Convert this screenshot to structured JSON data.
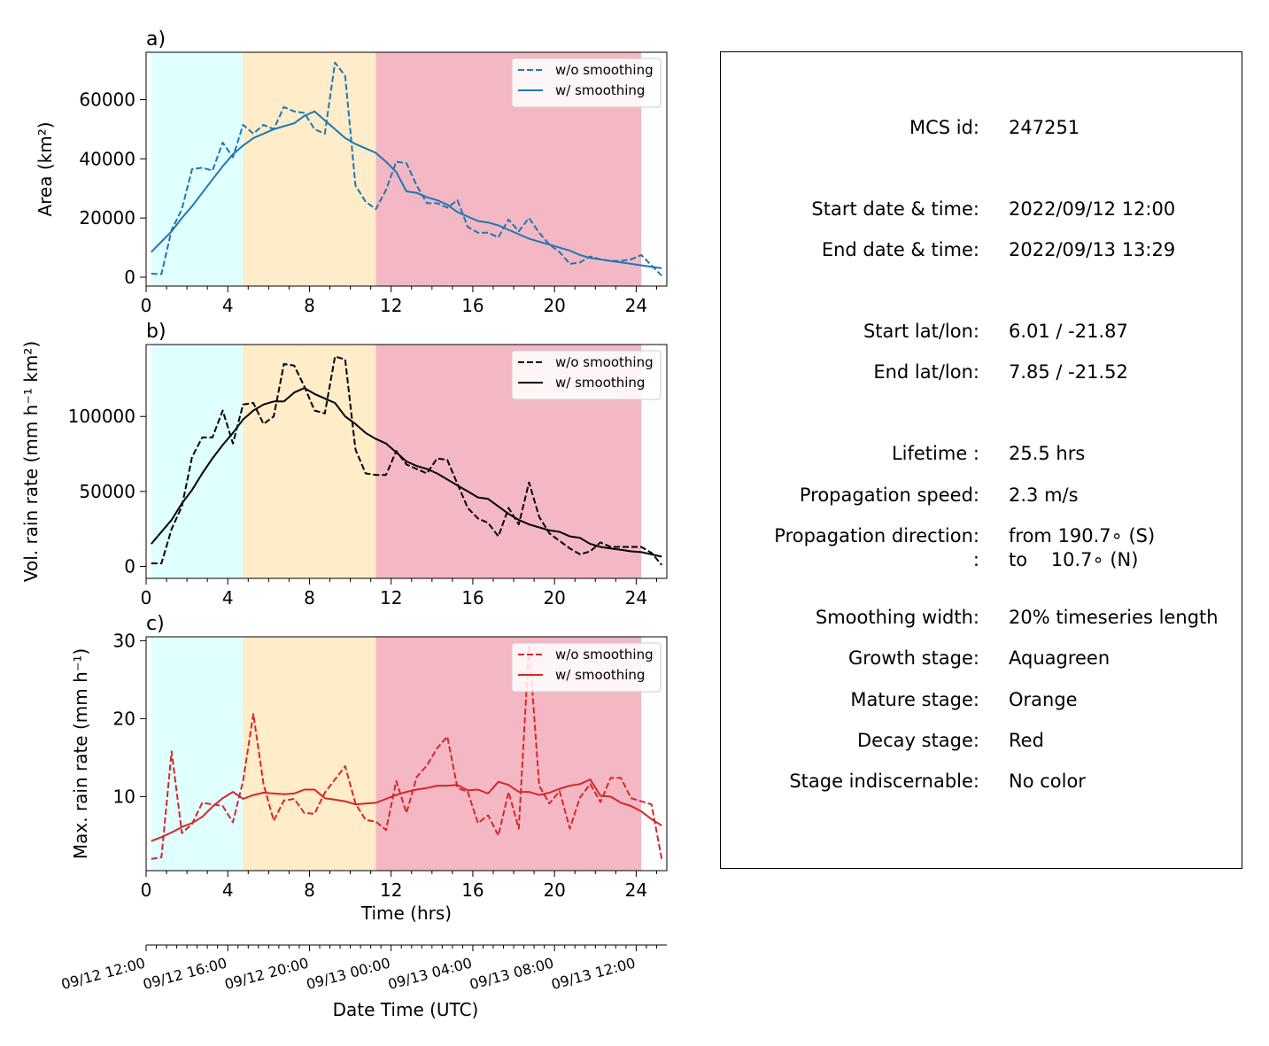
{
  "chart_data": [
    {
      "type": "line",
      "panel_label": "a)",
      "ylabel": "Area  (km²)",
      "xlim": [
        0,
        25.5
      ],
      "ylim": [
        -3000,
        76000
      ],
      "yticks": [
        0,
        20000,
        40000,
        60000
      ],
      "xticks": [
        0,
        4,
        8,
        12,
        16,
        20,
        24
      ],
      "color": "#1f77b4",
      "stages": [
        {
          "name": "growth",
          "start": 0.25,
          "end": 4.75,
          "color": "#e0ffff"
        },
        {
          "name": "mature",
          "start": 4.75,
          "end": 11.25,
          "color": "#ffecc8"
        },
        {
          "name": "decay",
          "start": 11.25,
          "end": 24.25,
          "color": "#f3b8c3"
        }
      ],
      "legend": {
        "position": "upper right",
        "entries": [
          "w/o smoothing",
          "w/ smoothing"
        ]
      },
      "series": [
        {
          "name": "w/o smoothing",
          "style": "dashed",
          "x": [
            0.25,
            0.75,
            1.25,
            1.75,
            2.25,
            2.75,
            3.25,
            3.75,
            4.25,
            4.75,
            5.25,
            5.75,
            6.25,
            6.75,
            7.25,
            7.75,
            8.25,
            8.75,
            9.25,
            9.75,
            10.25,
            10.75,
            11.25,
            11.75,
            12.25,
            12.75,
            13.25,
            13.75,
            14.25,
            14.75,
            15.25,
            15.75,
            16.25,
            16.75,
            17.25,
            17.75,
            18.25,
            18.75,
            19.25,
            19.75,
            20.25,
            20.75,
            21.25,
            21.75,
            22.25,
            22.75,
            23.25,
            23.75,
            24.25,
            24.75,
            25.25
          ],
          "y": [
            1200,
            1000,
            16000,
            23000,
            36500,
            37000,
            36000,
            45500,
            40500,
            51500,
            48500,
            51500,
            50000,
            57500,
            56000,
            55500,
            50000,
            48500,
            72500,
            68000,
            31000,
            25500,
            23000,
            29500,
            39000,
            38500,
            31000,
            25000,
            25000,
            23500,
            26000,
            17000,
            15000,
            15000,
            13500,
            19500,
            15500,
            20000,
            15000,
            11000,
            8500,
            4500,
            5000,
            7000,
            6000,
            5500,
            5500,
            6000,
            7500,
            4000,
            500
          ]
        },
        {
          "name": "w/ smoothing",
          "style": "solid",
          "x": [
            0.25,
            0.75,
            1.25,
            1.75,
            2.25,
            2.75,
            3.25,
            3.75,
            4.25,
            4.75,
            5.25,
            5.75,
            6.25,
            6.75,
            7.25,
            7.75,
            8.25,
            8.75,
            9.25,
            9.75,
            10.25,
            10.75,
            11.25,
            11.75,
            12.25,
            12.75,
            13.25,
            13.75,
            14.25,
            14.75,
            15.25,
            15.75,
            16.25,
            16.75,
            17.25,
            17.75,
            18.25,
            18.75,
            19.25,
            19.75,
            20.25,
            20.75,
            21.25,
            21.75,
            22.25,
            22.75,
            23.25,
            23.75,
            24.25,
            24.75,
            25.25
          ],
          "y": [
            8500,
            12000,
            15500,
            20000,
            24000,
            28500,
            33000,
            37500,
            41500,
            44500,
            47000,
            48500,
            50000,
            51000,
            52000,
            54500,
            56000,
            53000,
            50000,
            47000,
            45000,
            43500,
            42000,
            39000,
            35500,
            29000,
            28500,
            27000,
            26000,
            24500,
            22000,
            20500,
            19000,
            18500,
            17500,
            16000,
            14500,
            13000,
            12000,
            11000,
            10000,
            9000,
            7500,
            6500,
            6000,
            5500,
            5000,
            4500,
            4000,
            3500,
            3000
          ]
        }
      ]
    },
    {
      "type": "line",
      "panel_label": "b)",
      "ylabel": "Vol. rain rate (mm h⁻¹ km²)",
      "xlim": [
        0,
        25.5
      ],
      "ylim": [
        -8000,
        148000
      ],
      "yticks": [
        0,
        50000,
        100000
      ],
      "xticks": [
        0,
        4,
        8,
        12,
        16,
        20,
        24
      ],
      "color": "#000000",
      "stages": [
        {
          "name": "growth",
          "start": 0.25,
          "end": 4.75,
          "color": "#e0ffff"
        },
        {
          "name": "mature",
          "start": 4.75,
          "end": 11.25,
          "color": "#ffecc8"
        },
        {
          "name": "decay",
          "start": 11.25,
          "end": 24.25,
          "color": "#f3b8c3"
        }
      ],
      "legend": {
        "position": "upper right",
        "entries": [
          "w/o smoothing",
          "w/ smoothing"
        ]
      },
      "series": [
        {
          "name": "w/o smoothing",
          "style": "dashed",
          "x": [
            0.25,
            0.75,
            1.25,
            1.75,
            2.25,
            2.75,
            3.25,
            3.75,
            4.25,
            4.75,
            5.25,
            5.75,
            6.25,
            6.75,
            7.25,
            7.75,
            8.25,
            8.75,
            9.25,
            9.75,
            10.25,
            10.75,
            11.25,
            11.75,
            12.25,
            12.75,
            13.25,
            13.75,
            14.25,
            14.75,
            15.25,
            15.75,
            16.25,
            16.75,
            17.25,
            17.75,
            18.25,
            18.75,
            19.25,
            19.75,
            20.25,
            20.75,
            21.25,
            21.75,
            22.25,
            22.75,
            23.25,
            23.75,
            24.25,
            24.75,
            25.25
          ],
          "y": [
            2000,
            2000,
            25000,
            40000,
            73000,
            86000,
            86000,
            104000,
            82000,
            108000,
            109000,
            95000,
            100000,
            135000,
            134000,
            120000,
            104000,
            102000,
            140000,
            138000,
            78000,
            62000,
            61000,
            61000,
            77000,
            68000,
            65000,
            62000,
            72000,
            71000,
            55000,
            39000,
            32000,
            29000,
            20000,
            39000,
            28000,
            56000,
            33000,
            22000,
            17000,
            12000,
            8000,
            10000,
            16000,
            13000,
            13000,
            13000,
            13000,
            9000,
            1000
          ]
        },
        {
          "name": "w/ smoothing",
          "style": "solid",
          "x": [
            0.25,
            0.75,
            1.25,
            1.75,
            2.25,
            2.75,
            3.25,
            3.75,
            4.25,
            4.75,
            5.25,
            5.75,
            6.25,
            6.75,
            7.25,
            7.75,
            8.25,
            8.75,
            9.25,
            9.75,
            10.25,
            10.75,
            11.25,
            11.75,
            12.25,
            12.75,
            13.25,
            13.75,
            14.25,
            14.75,
            15.25,
            15.75,
            16.25,
            16.75,
            17.25,
            17.75,
            18.25,
            18.75,
            19.25,
            19.75,
            20.25,
            20.75,
            21.25,
            21.75,
            22.25,
            22.75,
            23.25,
            23.75,
            24.25,
            24.75,
            25.25
          ],
          "y": [
            15000,
            23000,
            31000,
            42000,
            51000,
            62000,
            72000,
            81000,
            89000,
            98000,
            104000,
            108000,
            110000,
            110000,
            116000,
            119000,
            115000,
            112000,
            109000,
            100000,
            95000,
            89000,
            85000,
            82000,
            76000,
            70000,
            67000,
            65000,
            62000,
            58000,
            54000,
            50000,
            46000,
            45000,
            40000,
            35000,
            31000,
            28000,
            26000,
            24000,
            23000,
            20000,
            19000,
            15000,
            13000,
            12000,
            11000,
            10000,
            9500,
            8000,
            6500
          ]
        }
      ]
    },
    {
      "type": "line",
      "panel_label": "c)",
      "ylabel": "Max. rain rate  (mm h⁻¹)",
      "xlabel": "Time (hrs)",
      "xlim": [
        0,
        25.5
      ],
      "ylim": [
        0.5,
        30.5
      ],
      "yticks": [
        10,
        20,
        30
      ],
      "xticks": [
        0,
        4,
        8,
        12,
        16,
        20,
        24
      ],
      "color": "#d62728",
      "stages": [
        {
          "name": "growth",
          "start": 0.25,
          "end": 4.75,
          "color": "#e0ffff"
        },
        {
          "name": "mature",
          "start": 4.75,
          "end": 11.25,
          "color": "#ffecc8"
        },
        {
          "name": "decay",
          "start": 11.25,
          "end": 24.25,
          "color": "#f3b8c3"
        }
      ],
      "legend": {
        "position": "upper right",
        "entries": [
          "w/o smoothing",
          "w/ smoothing"
        ]
      },
      "series": [
        {
          "name": "w/o smoothing",
          "style": "dashed",
          "x": [
            0.25,
            0.75,
            1.25,
            1.75,
            2.25,
            2.75,
            3.25,
            3.75,
            4.25,
            4.75,
            5.25,
            5.75,
            6.25,
            6.75,
            7.25,
            7.75,
            8.25,
            8.75,
            9.25,
            9.75,
            10.25,
            10.75,
            11.25,
            11.75,
            12.25,
            12.75,
            13.25,
            13.75,
            14.25,
            14.75,
            15.25,
            15.75,
            16.25,
            16.75,
            17.25,
            17.75,
            18.25,
            18.75,
            19.25,
            19.75,
            20.25,
            20.75,
            21.25,
            21.75,
            22.25,
            22.75,
            23.25,
            23.75,
            24.25,
            24.75,
            25.25
          ],
          "y": [
            2,
            2.2,
            15.8,
            5.3,
            6.5,
            9.2,
            9,
            8.8,
            6.7,
            12,
            20.6,
            11.6,
            6.9,
            9.5,
            9.7,
            7.9,
            7.8,
            10.5,
            12.2,
            13.9,
            9.1,
            7,
            6.8,
            5.7,
            12,
            7.9,
            12.5,
            14,
            16.2,
            17.7,
            11.1,
            10.6,
            6.6,
            7.6,
            5,
            10.6,
            5.9,
            29.5,
            11.4,
            9.1,
            10.7,
            5.9,
            9.9,
            11.6,
            9.3,
            12.4,
            12.4,
            9.8,
            9.4,
            9,
            2
          ]
        },
        {
          "name": "w/ smoothing",
          "style": "solid",
          "x": [
            0.25,
            0.75,
            1.25,
            1.75,
            2.25,
            2.75,
            3.25,
            3.75,
            4.25,
            4.75,
            5.25,
            5.75,
            6.25,
            6.75,
            7.25,
            7.75,
            8.25,
            8.75,
            9.25,
            9.75,
            10.25,
            10.75,
            11.25,
            11.75,
            12.25,
            12.75,
            13.25,
            13.75,
            14.25,
            14.75,
            15.25,
            15.75,
            16.25,
            16.75,
            17.25,
            17.75,
            18.25,
            18.75,
            19.25,
            19.75,
            20.25,
            20.75,
            21.25,
            21.75,
            22.25,
            22.75,
            23.25,
            23.75,
            24.25,
            24.75,
            25.25
          ],
          "y": [
            4.3,
            4.8,
            5.4,
            6.1,
            6.6,
            7.4,
            8.7,
            9.8,
            10.6,
            9.7,
            10.2,
            10.5,
            10.4,
            10.3,
            10.4,
            10.9,
            10.9,
            9.8,
            9.6,
            9.4,
            9,
            9.1,
            9.2,
            9.7,
            10.2,
            10.6,
            10.9,
            11.1,
            11.4,
            11.4,
            11.5,
            10.8,
            10.9,
            10.4,
            11.9,
            11.5,
            10.6,
            10.6,
            10.2,
            10.5,
            11,
            11.4,
            11.6,
            12.2,
            10.1,
            10,
            9.2,
            8.8,
            8.1,
            7.1,
            6.3
          ]
        }
      ]
    }
  ],
  "datetime_axis": {
    "label": "Date Time (UTC)",
    "ticks": [
      {
        "t": 0,
        "label": "09/12 12:00"
      },
      {
        "t": 4,
        "label": "09/12 16:00"
      },
      {
        "t": 8,
        "label": "09/12 20:00"
      },
      {
        "t": 12,
        "label": "09/13 00:00"
      },
      {
        "t": 16,
        "label": "09/13 04:00"
      },
      {
        "t": 20,
        "label": "09/13 08:00"
      },
      {
        "t": 24,
        "label": "09/13 12:00"
      }
    ]
  },
  "info_panel": {
    "mcs_id": {
      "label": "MCS id:",
      "value": "247251"
    },
    "start_time": {
      "label": "Start date & time:",
      "value": "2022/09/12 12:00"
    },
    "end_time": {
      "label": "End date & time:",
      "value": "2022/09/13 13:29"
    },
    "start_latlon": {
      "label": "Start lat/lon:",
      "value": "6.01 / -21.87"
    },
    "end_latlon": {
      "label": "End lat/lon:",
      "value": "7.85 / -21.52"
    },
    "lifetime": {
      "label": "Lifetime :",
      "value": "25.5 hrs"
    },
    "prop_speed": {
      "label": "Propagation speed:",
      "value": "2.3 m/s"
    },
    "prop_direction": {
      "label": "Propagation direction:",
      "value": "from 190.7∘ (S)"
    },
    "prop_direction_to": {
      "label": ":",
      "value": "to    10.7∘ (N)"
    },
    "smoothing": {
      "label": "Smoothing width:",
      "value": "20% timeseries length"
    },
    "growth": {
      "label": "Growth stage:",
      "value": "Aquagreen"
    },
    "mature": {
      "label": "Mature stage:",
      "value": "Orange"
    },
    "decay": {
      "label": "Decay stage:",
      "value": "Red"
    },
    "indiscernable": {
      "label": "Stage indiscernable:",
      "value": "No color"
    }
  }
}
